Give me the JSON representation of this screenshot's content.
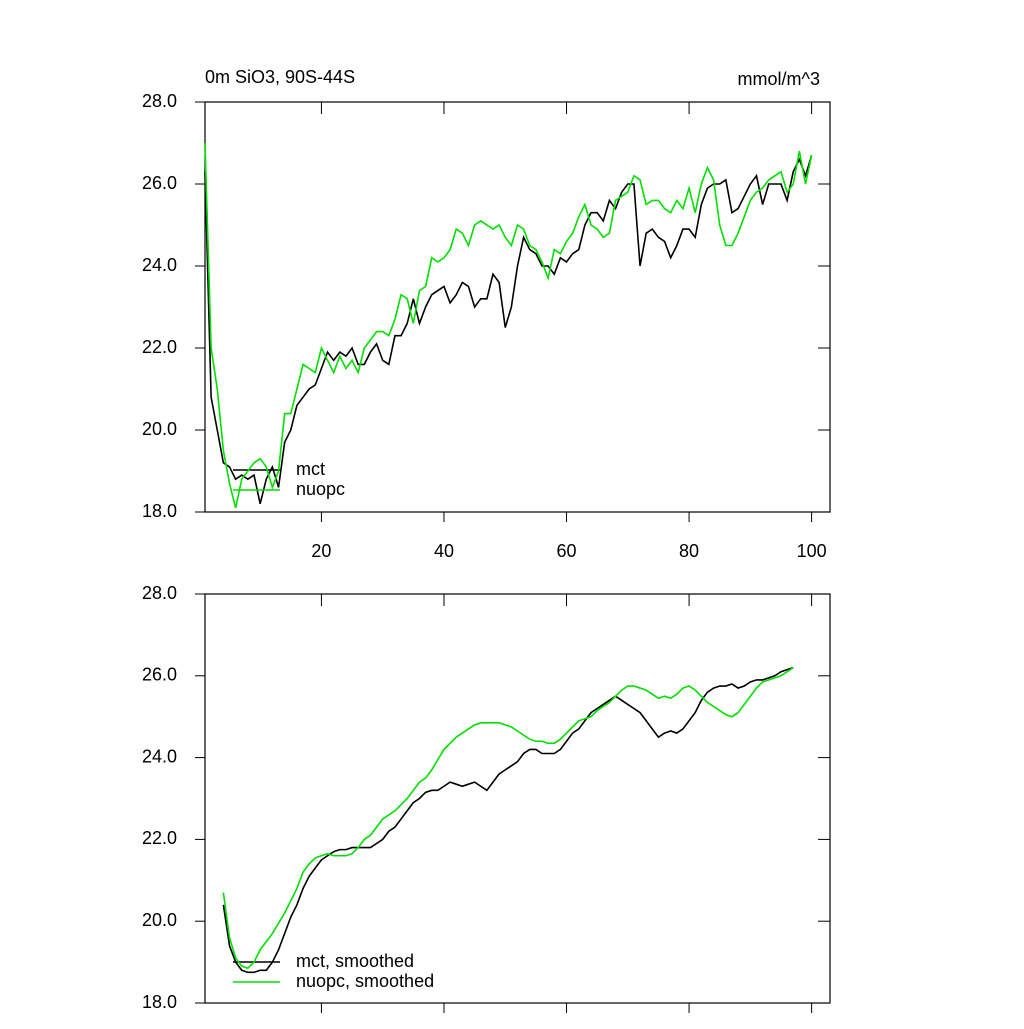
{
  "chart_data": [
    {
      "type": "line",
      "left_title": "0m SiO3, 90S-44S",
      "right_title": "mmol/m^3",
      "x": [
        1,
        2,
        3,
        4,
        5,
        6,
        7,
        8,
        9,
        10,
        11,
        12,
        13,
        14,
        15,
        16,
        17,
        18,
        19,
        20,
        21,
        22,
        23,
        24,
        25,
        26,
        27,
        28,
        29,
        30,
        31,
        32,
        33,
        34,
        35,
        36,
        37,
        38,
        39,
        40,
        41,
        42,
        43,
        44,
        45,
        46,
        47,
        48,
        49,
        50,
        51,
        52,
        53,
        54,
        55,
        56,
        57,
        58,
        59,
        60,
        61,
        62,
        63,
        64,
        65,
        66,
        67,
        68,
        69,
        70,
        71,
        72,
        73,
        74,
        75,
        76,
        77,
        78,
        79,
        80,
        81,
        82,
        83,
        84,
        85,
        86,
        87,
        88,
        89,
        90,
        91,
        92,
        93,
        94,
        95,
        96,
        97,
        98,
        99,
        100
      ],
      "xlim": [
        1,
        103
      ],
      "xticks": [
        20,
        40,
        60,
        80,
        100
      ],
      "ylim": [
        18,
        28
      ],
      "yticks": [
        {
          "value": 18,
          "label": "18.0"
        },
        {
          "value": 20,
          "label": "20.0"
        },
        {
          "value": 22,
          "label": "22.0"
        },
        {
          "value": 24,
          "label": "24.0"
        },
        {
          "value": 26,
          "label": "26.0"
        },
        {
          "value": 28,
          "label": "28.0"
        }
      ],
      "series": [
        {
          "name": "mct",
          "color": "#000000",
          "values": [
            26.3,
            20.8,
            20.0,
            19.2,
            19.1,
            18.8,
            18.9,
            18.8,
            18.9,
            18.2,
            18.8,
            19.1,
            18.6,
            19.7,
            20.0,
            20.6,
            20.8,
            21.0,
            21.1,
            21.5,
            21.9,
            21.7,
            21.9,
            21.8,
            22.0,
            21.6,
            21.6,
            21.9,
            22.1,
            21.7,
            21.6,
            22.3,
            22.3,
            22.6,
            23.2,
            22.6,
            23.0,
            23.3,
            23.4,
            23.5,
            23.1,
            23.3,
            23.6,
            23.5,
            23.0,
            23.2,
            23.2,
            23.8,
            23.6,
            22.5,
            23.0,
            24.0,
            24.7,
            24.4,
            24.3,
            24.0,
            24.0,
            23.8,
            24.2,
            24.1,
            24.3,
            24.4,
            25.0,
            25.3,
            25.3,
            25.1,
            25.6,
            25.4,
            25.8,
            26.0,
            26.0,
            24.0,
            24.8,
            24.9,
            24.7,
            24.6,
            24.2,
            24.5,
            24.9,
            24.9,
            24.7,
            25.5,
            25.9,
            26.0,
            26.0,
            26.1,
            25.3,
            25.4,
            25.7,
            26.0,
            26.2,
            25.5,
            26.0,
            26.0,
            26.0,
            25.6,
            26.3,
            26.6,
            26.2,
            26.7
          ]
        },
        {
          "name": "nuopc",
          "color": "#00e000",
          "values": [
            27.0,
            22.0,
            21.0,
            19.5,
            18.7,
            18.1,
            18.8,
            19.0,
            19.2,
            19.3,
            19.1,
            18.6,
            19.0,
            20.4,
            20.4,
            21.0,
            21.6,
            21.5,
            21.4,
            22.0,
            21.7,
            21.4,
            21.8,
            21.5,
            21.7,
            21.4,
            22.0,
            22.2,
            22.4,
            22.4,
            22.3,
            22.7,
            23.3,
            23.2,
            22.6,
            23.4,
            23.5,
            24.2,
            24.1,
            24.2,
            24.4,
            24.9,
            24.8,
            24.5,
            25.0,
            25.1,
            25.0,
            24.9,
            25.0,
            24.7,
            24.5,
            25.0,
            24.9,
            24.5,
            24.4,
            24.1,
            23.7,
            24.4,
            24.3,
            24.6,
            24.8,
            25.2,
            25.5,
            25.0,
            24.9,
            24.7,
            24.8,
            25.6,
            25.7,
            25.8,
            26.2,
            26.1,
            25.5,
            25.6,
            25.6,
            25.4,
            25.3,
            25.6,
            25.4,
            25.9,
            25.3,
            26.0,
            26.4,
            26.1,
            25.0,
            24.5,
            24.5,
            24.8,
            25.2,
            25.6,
            25.8,
            25.9,
            26.1,
            26.2,
            26.3,
            25.8,
            26.0,
            26.8,
            26.0,
            26.7
          ]
        }
      ]
    },
    {
      "type": "line",
      "x": [
        1,
        2,
        3,
        4,
        5,
        6,
        7,
        8,
        9,
        10,
        11,
        12,
        13,
        14,
        15,
        16,
        17,
        18,
        19,
        20,
        21,
        22,
        23,
        24,
        25,
        26,
        27,
        28,
        29,
        30,
        31,
        32,
        33,
        34,
        35,
        36,
        37,
        38,
        39,
        40,
        41,
        42,
        43,
        44,
        45,
        46,
        47,
        48,
        49,
        50,
        51,
        52,
        53,
        54,
        55,
        56,
        57,
        58,
        59,
        60,
        61,
        62,
        63,
        64,
        65,
        66,
        67,
        68,
        69,
        70,
        71,
        72,
        73,
        74,
        75,
        76,
        77,
        78,
        79,
        80,
        81,
        82,
        83,
        84,
        85,
        86,
        87,
        88,
        89,
        90,
        91,
        92,
        93,
        94,
        95,
        96,
        97,
        98,
        99,
        100
      ],
      "xlim": [
        1,
        103
      ],
      "xticks": [
        20,
        40,
        60,
        80,
        100
      ],
      "ylim": [
        18,
        28
      ],
      "yticks": [
        {
          "value": 18,
          "label": "18.0"
        },
        {
          "value": 20,
          "label": "20.0"
        },
        {
          "value": 22,
          "label": "22.0"
        },
        {
          "value": 24,
          "label": "24.0"
        },
        {
          "value": 26,
          "label": "26.0"
        },
        {
          "value": 28,
          "label": "28.0"
        }
      ],
      "series": [
        {
          "name": "mct, smoothed",
          "color": "#000000",
          "values": [
            null,
            null,
            null,
            20.4,
            19.4,
            19.0,
            18.8,
            18.75,
            18.75,
            18.8,
            18.8,
            19.0,
            19.3,
            19.7,
            20.1,
            20.4,
            20.8,
            21.1,
            21.3,
            21.5,
            21.6,
            21.7,
            21.75,
            21.75,
            21.8,
            21.8,
            21.8,
            21.8,
            21.9,
            22.0,
            22.2,
            22.3,
            22.5,
            22.7,
            22.9,
            23.0,
            23.15,
            23.2,
            23.2,
            23.3,
            23.4,
            23.35,
            23.3,
            23.35,
            23.4,
            23.3,
            23.2,
            23.4,
            23.6,
            23.7,
            23.8,
            23.9,
            24.1,
            24.2,
            24.2,
            24.1,
            24.1,
            24.1,
            24.2,
            24.4,
            24.6,
            24.7,
            24.9,
            25.1,
            25.2,
            25.3,
            25.4,
            25.5,
            25.4,
            25.3,
            25.2,
            25.1,
            24.9,
            24.7,
            24.5,
            24.6,
            24.65,
            24.6,
            24.7,
            24.9,
            25.1,
            25.4,
            25.6,
            25.7,
            25.75,
            25.75,
            25.8,
            25.7,
            25.75,
            25.85,
            25.9,
            25.9,
            25.95,
            26.0,
            26.1,
            26.15,
            26.2,
            null,
            null,
            null
          ]
        },
        {
          "name": "nuopc, smoothed",
          "color": "#00e000",
          "values": [
            null,
            null,
            null,
            20.7,
            19.6,
            19.1,
            18.9,
            18.85,
            19.0,
            19.3,
            19.5,
            19.7,
            19.95,
            20.2,
            20.5,
            20.8,
            21.2,
            21.4,
            21.55,
            21.6,
            21.65,
            21.6,
            21.6,
            21.6,
            21.65,
            21.8,
            22.0,
            22.1,
            22.3,
            22.5,
            22.6,
            22.7,
            22.85,
            23.0,
            23.2,
            23.4,
            23.5,
            23.7,
            23.95,
            24.2,
            24.35,
            24.5,
            24.6,
            24.7,
            24.8,
            24.85,
            24.85,
            24.85,
            24.85,
            24.8,
            24.75,
            24.65,
            24.55,
            24.45,
            24.4,
            24.4,
            24.35,
            24.35,
            24.45,
            24.6,
            24.75,
            24.9,
            24.95,
            25.0,
            25.15,
            25.25,
            25.35,
            25.5,
            25.65,
            25.75,
            25.75,
            25.7,
            25.65,
            25.55,
            25.45,
            25.5,
            25.45,
            25.55,
            25.7,
            25.75,
            25.65,
            25.5,
            25.35,
            25.25,
            25.15,
            25.05,
            25.0,
            25.1,
            25.3,
            25.5,
            25.7,
            25.85,
            25.9,
            25.95,
            26.0,
            26.1,
            26.2,
            null,
            null,
            null
          ]
        }
      ]
    }
  ]
}
